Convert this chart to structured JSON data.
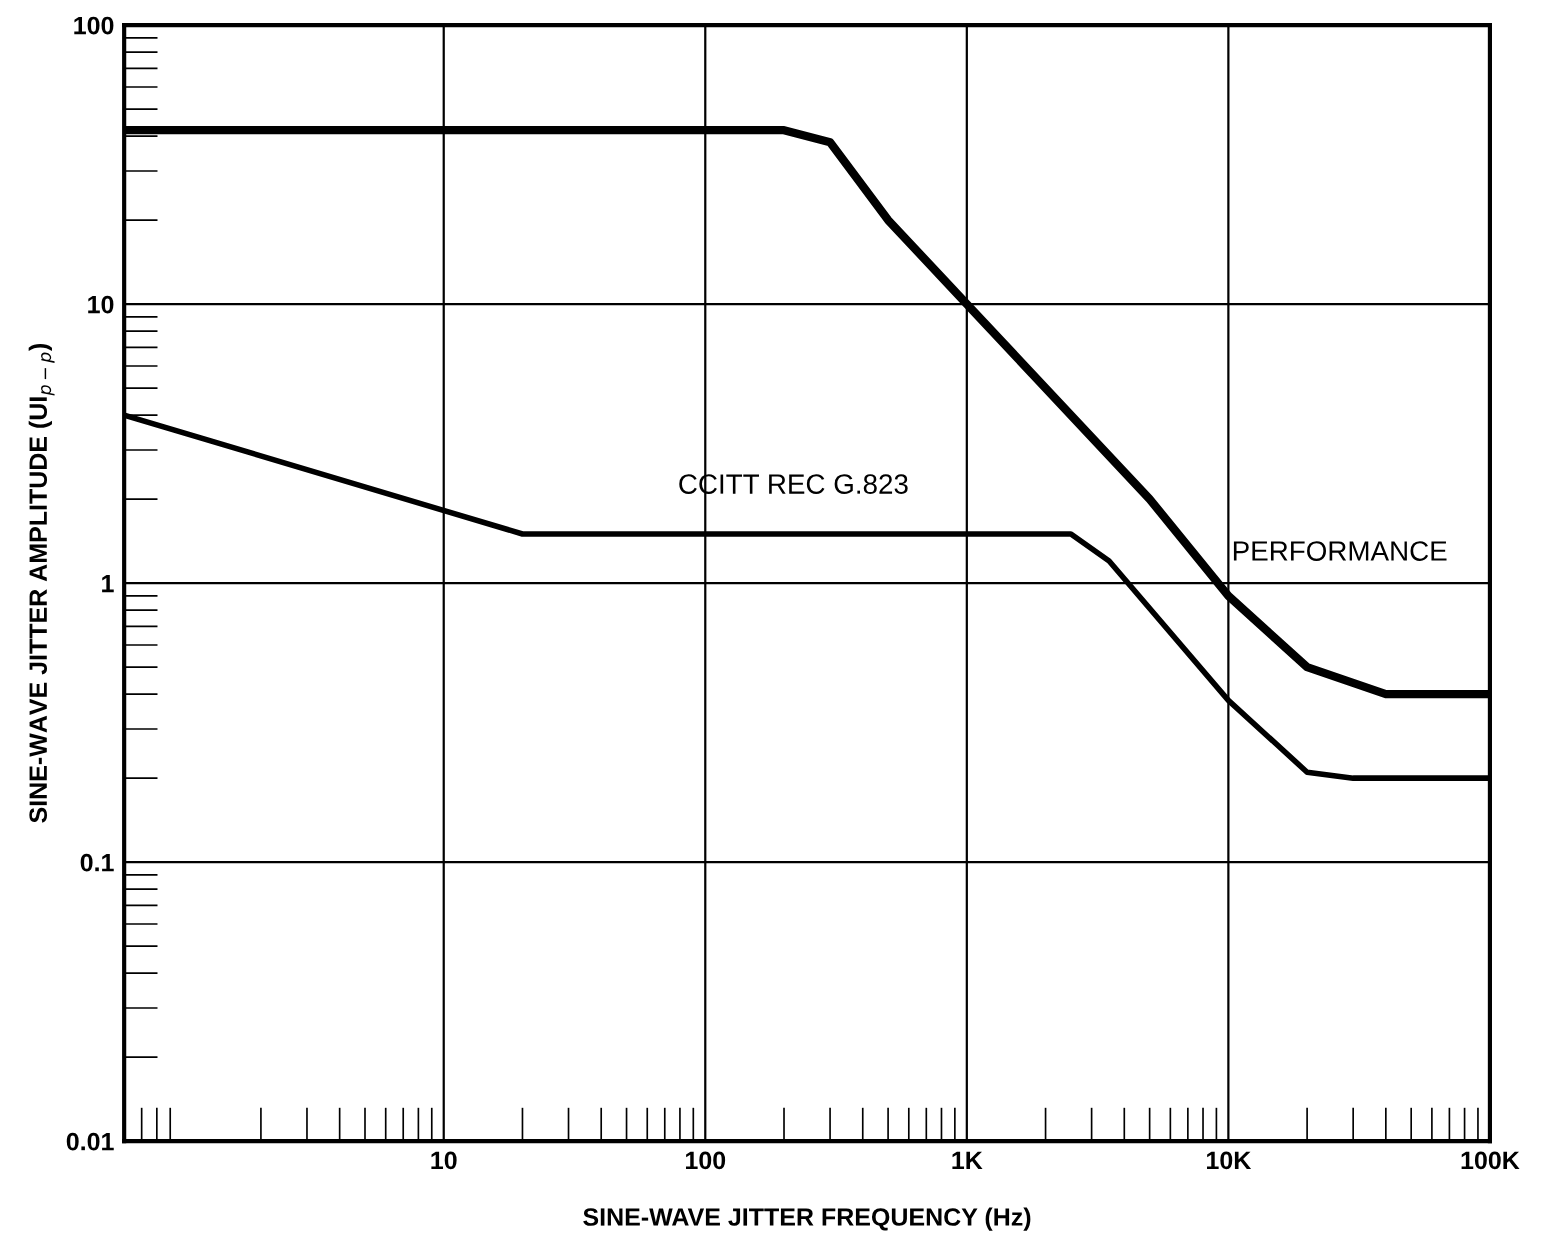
{
  "chart_data": {
    "type": "line",
    "xlabel": "SINE-WAVE JITTER FREQUENCY (Hz)",
    "ylabel": "SINE-WAVE JITTER AMPLITUDE (UI$_{p−p}$)",
    "log": "xy",
    "grid": true,
    "xlim": [
      0.6,
      100000
    ],
    "ylim": [
      0.01,
      100
    ],
    "xticks": [
      10,
      100,
      {
        "value": 1000,
        "label": "1K"
      },
      {
        "value": 10000,
        "label": "10K"
      },
      {
        "value": 100000,
        "label": "100K"
      }
    ],
    "yticks": [
      0.01,
      0.1,
      1,
      10,
      100
    ],
    "series": [
      {
        "name": "PERFORMANCE",
        "color": "#000000",
        "x": [
          0.6,
          200,
          300,
          500,
          1000,
          2000,
          5000,
          10000,
          20000,
          40000,
          100000
        ],
        "values": [
          42,
          42,
          38,
          20,
          10,
          5,
          2,
          0.9,
          0.5,
          0.4,
          0.4
        ]
      },
      {
        "name": "CCITT REC G.823",
        "color": "#000000",
        "x": [
          0.6,
          20,
          2500,
          3500,
          10000,
          20000,
          30000,
          100000
        ],
        "values": [
          4,
          1.5,
          1.5,
          1.2,
          0.38,
          0.21,
          0.2,
          0.2
        ]
      }
    ]
  }
}
